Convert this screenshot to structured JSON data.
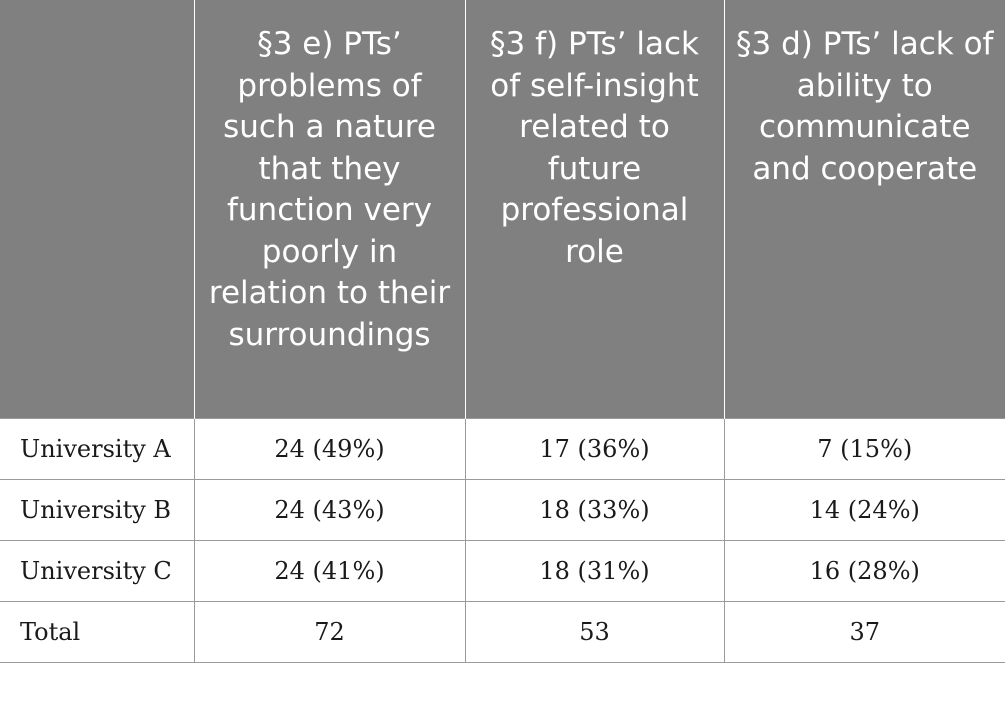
{
  "table": {
    "headers": [
      "",
      "§3 e) PTs’ problems of such a nature that they function very poorly in relation to their surroundings",
      "§3 f) PTs’ lack of self-insight related to future professional role",
      "§3 d) PTs’ lack of ability to communicate and cooperate"
    ],
    "rows": [
      {
        "label": "University A",
        "cells": [
          "24 (49%)",
          "17 (36%)",
          "7 (15%)"
        ]
      },
      {
        "label": "University B",
        "cells": [
          "24 (43%)",
          "18 (33%)",
          "14 (24%)"
        ]
      },
      {
        "label": "University C",
        "cells": [
          "24 (41%)",
          "18 (31%)",
          "16 (28%)"
        ]
      },
      {
        "label": "Total",
        "cells": [
          "72",
          "53",
          "37"
        ]
      }
    ]
  },
  "colors": {
    "header_bg": "#808080",
    "header_text": "#ffffff",
    "grid": "#9a9a9a"
  }
}
